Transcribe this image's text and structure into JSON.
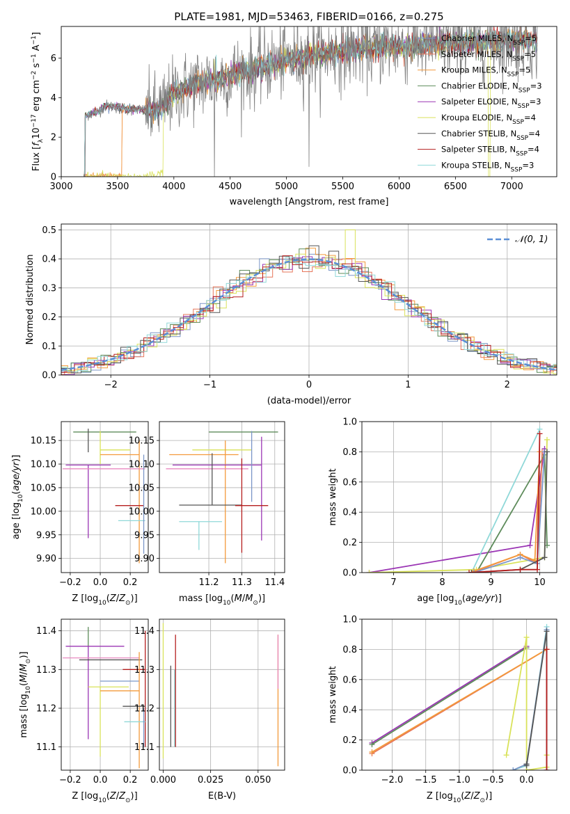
{
  "figure_title": "PLATE=1981, MJD=53463, FIBERID=0166, z=0.275",
  "colors": {
    "Chabrier MILES": "#7b96c8",
    "Salpeter MILES": "#e6755a",
    "Kroupa MILES": "#f39a3b",
    "Chabrier ELODIE": "#5d8b5a",
    "Salpeter ELODIE": "#9a34b4",
    "Kroupa ELODIE": "#d9e25a",
    "Chabrier STELIB": "#555555",
    "Salpeter STELIB": "#b51e1e",
    "Kroupa STELIB": "#8fd8d8",
    "pink": "#e88ac0",
    "normal_curve": "#5b8fd6"
  },
  "chart_data": [
    {
      "id": "spectrum",
      "type": "line",
      "xlabel": "wavelength [Angstrom, rest frame]",
      "ylabel": "Flux [f_λ 10^-17 erg cm^-2 s^-1 A^-1]",
      "xlim": [
        3000,
        7400
      ],
      "ylim": [
        0,
        7.6
      ],
      "xticks": [
        3000,
        3500,
        4000,
        4500,
        5000,
        5500,
        6000,
        6500,
        7000
      ],
      "yticks": [
        0,
        2,
        4,
        6
      ],
      "legend_position": "top-right",
      "series": [
        {
          "name": "Chabrier MILES",
          "nssp": 5
        },
        {
          "name": "Salpeter MILES",
          "nssp": 5
        },
        {
          "name": "Kroupa MILES",
          "nssp": 5
        },
        {
          "name": "Chabrier ELODIE",
          "nssp": 3
        },
        {
          "name": "Salpeter ELODIE",
          "nssp": 3
        },
        {
          "name": "Kroupa ELODIE",
          "nssp": 4
        },
        {
          "name": "Chabrier STELIB",
          "nssp": 4
        },
        {
          "name": "Salpeter STELIB",
          "nssp": 4
        },
        {
          "name": "Kroupa STELIB",
          "nssp": 3
        }
      ],
      "continuum": {
        "x": [
          3200,
          3300,
          3400,
          3500,
          3600,
          3700,
          3800,
          3900,
          4000,
          4200,
          4400,
          4600,
          4800,
          5000,
          5200,
          5400,
          5600,
          5800,
          6000,
          6200,
          6400,
          6600,
          6800,
          7000,
          7200
        ],
        "y": [
          3.1,
          3.2,
          3.6,
          3.5,
          3.4,
          3.4,
          3.3,
          3.5,
          4.2,
          4.7,
          5.0,
          5.3,
          5.6,
          5.9,
          6.1,
          6.3,
          6.45,
          6.55,
          6.6,
          6.7,
          6.75,
          6.8,
          6.85,
          6.9,
          6.9
        ]
      },
      "gray_noise_from": 3750
    },
    {
      "id": "residuals",
      "type": "step",
      "xlabel": "(data-model)/error",
      "ylabel": "Normed distribution",
      "xlim": [
        -2.5,
        2.5
      ],
      "ylim": [
        0,
        0.52
      ],
      "xticks": [
        -2,
        -1,
        0,
        1,
        2
      ],
      "yticks": [
        0.0,
        0.1,
        0.2,
        0.3,
        0.4,
        0.5
      ],
      "bin_width": 0.1,
      "normal_label": "𝒩(0, 1)",
      "legend_position": "top-right"
    },
    {
      "id": "age_vs_Z",
      "type": "errorbar",
      "xlabel": "Z [log10(Z/Z⊙)]",
      "ylabel": "age [log10(age/yr)]",
      "xlim": [
        -0.26,
        0.32
      ],
      "ylim": [
        9.87,
        10.19
      ],
      "xticks": [
        -0.2,
        0.0,
        0.2
      ],
      "yticks": [
        9.9,
        9.95,
        10.0,
        10.05,
        10.1,
        10.15
      ],
      "points": [
        {
          "c": "Chabrier ELODIE",
          "x": 0.06,
          "y": 10.168,
          "xerr": [
            0.24,
            0.18
          ],
          "yerr": [
            0.0,
            0.0
          ]
        },
        {
          "c": "Chabrier STELIB",
          "x": -0.08,
          "y": 10.125,
          "xerr": [
            0.0,
            0.0
          ],
          "yerr": [
            0.0,
            0.05
          ]
        },
        {
          "c": "Kroupa ELODIE",
          "x": 0.0,
          "y": 10.13,
          "xerr": [
            0.0,
            0.2
          ],
          "yerr": [
            0.03,
            0.04
          ]
        },
        {
          "c": "Kroupa MILES",
          "x": 0.26,
          "y": 10.12,
          "xerr": [
            0.26,
            0.0
          ],
          "yerr": [
            0.23,
            0.03
          ]
        },
        {
          "c": "Salpeter ELODIE",
          "x": -0.08,
          "y": 10.098,
          "xerr": [
            0.15,
            0.15
          ],
          "yerr": [
            0.155,
            0.0
          ]
        },
        {
          "c": "pink",
          "x": 0.1,
          "y": 10.09,
          "xerr": [
            0.35,
            0.2
          ],
          "yerr": [
            0.0,
            0.0
          ]
        },
        {
          "c": "Salpeter STELIB",
          "x": 0.2,
          "y": 10.012,
          "xerr": [
            0.1,
            0.09
          ],
          "yerr": [
            0.0,
            0.0
          ]
        },
        {
          "c": "Kroupa STELIB",
          "x": 0.2,
          "y": 9.98,
          "xerr": [
            0.08,
            0.1
          ],
          "yerr": [
            0.0,
            0.0
          ]
        },
        {
          "c": "Chabrier MILES",
          "x": 0.29,
          "y": 10.0,
          "xerr": [
            0.0,
            0.0
          ],
          "yerr": [
            0.09,
            0.12
          ]
        }
      ]
    },
    {
      "id": "age_vs_mass",
      "type": "errorbar",
      "xlabel": "mass [log10(M/M⊙)]",
      "ylabel": "",
      "xlim": [
        11.05,
        11.43
      ],
      "ylim": [
        9.87,
        10.19
      ],
      "xticks": [
        11.2,
        11.3,
        11.4
      ],
      "yticks": [
        9.9,
        9.95,
        10.0,
        10.05,
        10.1,
        10.15
      ],
      "points": [
        {
          "c": "Chabrier ELODIE",
          "x": 11.33,
          "y": 10.168,
          "xerr": [
            0.13,
            0.08
          ],
          "yerr": [
            0.0,
            0.0
          ]
        },
        {
          "c": "Kroupa ELODIE",
          "x": 11.27,
          "y": 10.13,
          "xerr": [
            0.12,
            0.06
          ],
          "yerr": [
            0.0,
            0.0
          ]
        },
        {
          "c": "Kroupa MILES",
          "x": 11.25,
          "y": 10.12,
          "xerr": [
            0.17,
            0.04
          ],
          "yerr": [
            0.23,
            0.03
          ]
        },
        {
          "c": "Salpeter ELODIE",
          "x": 11.36,
          "y": 10.098,
          "xerr": [
            0.27,
            0.0
          ],
          "yerr": [
            0.16,
            0.06
          ]
        },
        {
          "c": "pink",
          "x": 11.2,
          "y": 10.09,
          "xerr": [
            0.13,
            0.12
          ],
          "yerr": [
            0.0,
            0.0
          ]
        },
        {
          "c": "Chabrier STELIB",
          "x": 11.21,
          "y": 10.013,
          "xerr": [
            0.1,
            0.09
          ],
          "yerr": [
            0.0,
            0.11
          ]
        },
        {
          "c": "Salpeter STELIB",
          "x": 11.3,
          "y": 10.012,
          "xerr": [
            0.02,
            0.08
          ],
          "yerr": [
            0.1,
            0.1
          ]
        },
        {
          "c": "Kroupa STELIB",
          "x": 11.17,
          "y": 9.978,
          "xerr": [
            0.06,
            0.07
          ],
          "yerr": [
            0.06,
            0.0
          ]
        },
        {
          "c": "Chabrier MILES",
          "x": 11.33,
          "y": 10.06,
          "xerr": [
            0.0,
            0.0
          ],
          "yerr": [
            0.04,
            0.11
          ]
        }
      ]
    },
    {
      "id": "weight_vs_age",
      "type": "line",
      "xlabel": "age [log10(age/yr)]",
      "ylabel": "mass weight",
      "xlim": [
        6.35,
        10.35
      ],
      "ylim": [
        0,
        1.0
      ],
      "xticks": [
        7,
        8,
        9,
        10
      ],
      "yticks": [
        0.0,
        0.2,
        0.4,
        0.6,
        0.8,
        1.0
      ],
      "series": [
        {
          "c": "Salpeter ELODIE",
          "x": [
            6.5,
            9.8,
            10.1
          ],
          "y": [
            0.0,
            0.18,
            0.82
          ]
        },
        {
          "c": "Kroupa STELIB",
          "x": [
            8.6,
            10.0
          ],
          "y": [
            0.0,
            0.95
          ]
        },
        {
          "c": "Chabrier ELODIE",
          "x": [
            8.7,
            10.1,
            10.15
          ],
          "y": [
            0.0,
            0.78,
            0.18
          ]
        },
        {
          "c": "Kroupa ELODIE",
          "x": [
            6.5,
            8.7,
            10.1,
            10.15
          ],
          "y": [
            0.0,
            0.02,
            0.1,
            0.88
          ]
        },
        {
          "c": "Salpeter MILES",
          "x": [
            8.6,
            9.6,
            9.95,
            10.05
          ],
          "y": [
            0.0,
            0.12,
            0.06,
            0.8
          ]
        },
        {
          "c": "Kroupa MILES",
          "x": [
            8.65,
            9.6,
            9.9,
            10.0
          ],
          "y": [
            0.01,
            0.12,
            0.08,
            0.8
          ]
        },
        {
          "c": "Chabrier MILES",
          "x": [
            8.65,
            9.6,
            9.95,
            10.1
          ],
          "y": [
            0.0,
            0.1,
            0.06,
            0.8
          ]
        },
        {
          "c": "Chabrier STELIB",
          "x": [
            8.6,
            9.6,
            10.1,
            10.15
          ],
          "y": [
            0.0,
            0.02,
            0.1,
            0.8
          ]
        },
        {
          "c": "Salpeter STELIB",
          "x": [
            8.55,
            9.6,
            9.95,
            10.0
          ],
          "y": [
            0.0,
            0.02,
            0.02,
            0.92
          ]
        }
      ]
    },
    {
      "id": "mass_vs_Z",
      "type": "errorbar",
      "xlabel": "Z [log10(Z/Z⊙)]",
      "ylabel": "mass [log10(M/M⊙)]",
      "xlim": [
        -0.26,
        0.32
      ],
      "ylim": [
        11.04,
        11.43
      ],
      "xticks": [
        -0.2,
        0.0,
        0.2
      ],
      "yticks": [
        11.1,
        11.2,
        11.3,
        11.4
      ],
      "points": [
        {
          "c": "Chabrier ELODIE",
          "x": -0.08,
          "y": 11.36,
          "xerr": [
            0.0,
            0.0
          ],
          "yerr": [
            0.0,
            0.05
          ]
        },
        {
          "c": "Salpeter ELODIE",
          "x": -0.08,
          "y": 11.36,
          "xerr": [
            0.15,
            0.24
          ],
          "yerr": [
            0.24,
            0.0
          ]
        },
        {
          "c": "pink",
          "x": 0.0,
          "y": 11.33,
          "xerr": [
            0.25,
            0.26
          ],
          "yerr": [
            0.0,
            0.0
          ]
        },
        {
          "c": "Chabrier STELIB",
          "x": 0.1,
          "y": 11.325,
          "xerr": [
            0.24,
            0.18
          ],
          "yerr": [
            0.0,
            0.0
          ]
        },
        {
          "c": "Salpeter STELIB",
          "x": 0.3,
          "y": 11.3,
          "xerr": [
            0.15,
            0.0
          ],
          "yerr": [
            0.2,
            0.1
          ]
        },
        {
          "c": "Chabrier MILES",
          "x": 0.26,
          "y": 11.27,
          "xerr": [
            0.26,
            0.0
          ],
          "yerr": [
            0.0,
            0.0
          ]
        },
        {
          "c": "Kroupa ELODIE",
          "x": 0.0,
          "y": 11.255,
          "xerr": [
            0.08,
            0.19
          ],
          "yerr": [
            0.18,
            0.0
          ]
        },
        {
          "c": "Kroupa MILES",
          "x": 0.26,
          "y": 11.245,
          "xerr": [
            0.26,
            0.0
          ],
          "yerr": [
            0.2,
            0.1
          ]
        },
        {
          "c": "Chabrier STELIB",
          "x": 0.25,
          "y": 11.205,
          "xerr": [
            0.1,
            0.05
          ],
          "yerr": [
            0.0,
            0.0
          ]
        },
        {
          "c": "Kroupa STELIB",
          "x": 0.25,
          "y": 11.165,
          "xerr": [
            0.09,
            0.05
          ],
          "yerr": [
            0.0,
            0.0
          ]
        },
        {
          "c": "Chabrier MILES",
          "x": 0.29,
          "y": 11.2,
          "xerr": [
            0.0,
            0.0
          ],
          "yerr": [
            0.1,
            0.0
          ]
        }
      ]
    },
    {
      "id": "mass_vs_ebv",
      "type": "errorbar",
      "xlabel": "E(B-V)",
      "ylabel": "",
      "xlim": [
        -0.002,
        0.064
      ],
      "ylim": [
        11.04,
        11.43
      ],
      "xticks": [
        0.0,
        0.025,
        0.05
      ],
      "xticklabels": [
        "0.000",
        "0.025",
        "0.050"
      ],
      "yticks": [
        11.1,
        11.2,
        11.3,
        11.4
      ],
      "points": [
        {
          "c": "Kroupa ELODIE",
          "x": 0.0,
          "y": 11.3,
          "xerr": [
            0.0,
            0.0
          ],
          "yerr": [
            0.23,
            0.12
          ]
        },
        {
          "c": "Chabrier STELIB",
          "x": 0.004,
          "y": 11.2,
          "xerr": [
            0.0,
            0.0
          ],
          "yerr": [
            0.1,
            0.11
          ]
        },
        {
          "c": "Kroupa STELIB",
          "x": 0.006,
          "y": 11.2,
          "xerr": [
            0.0,
            0.0
          ],
          "yerr": [
            0.1,
            0.1
          ]
        },
        {
          "c": "Salpeter STELIB",
          "x": 0.0065,
          "y": 11.3,
          "xerr": [
            0.0,
            0.0
          ],
          "yerr": [
            0.2,
            0.09
          ]
        },
        {
          "c": "Kroupa MILES",
          "x": 0.0605,
          "y": 11.25,
          "xerr": [
            0.0,
            0.0
          ],
          "yerr": [
            0.2,
            0.14
          ]
        },
        {
          "c": "pink",
          "x": 0.0605,
          "y": 11.3,
          "xerr": [
            0.0,
            0.0
          ],
          "yerr": [
            0.05,
            0.09
          ]
        }
      ]
    },
    {
      "id": "weight_vs_Z",
      "type": "line",
      "xlabel": "Z [log10(Z/Z⊙)]",
      "ylabel": "mass weight",
      "xlim": [
        -2.45,
        0.45
      ],
      "ylim": [
        0,
        1.0
      ],
      "xticks": [
        -2.0,
        -1.5,
        -1.0,
        -0.5,
        0.0
      ],
      "xticklabels": [
        "−2.0",
        "−1.5",
        "−1.0",
        "−0.5",
        "0.0"
      ],
      "yticks": [
        0.0,
        0.2,
        0.4,
        0.6,
        0.8,
        1.0
      ],
      "series": [
        {
          "c": "Salpeter ELODIE",
          "x": [
            -2.3,
            0.0
          ],
          "y": [
            0.18,
            0.82
          ]
        },
        {
          "c": "Chabrier ELODIE",
          "x": [
            -2.3,
            0.0
          ],
          "y": [
            0.17,
            0.81
          ]
        },
        {
          "c": "Salpeter MILES",
          "x": [
            -2.3,
            0.3
          ],
          "y": [
            0.11,
            0.8
          ]
        },
        {
          "c": "Kroupa MILES",
          "x": [
            -2.3,
            0.3
          ],
          "y": [
            0.12,
            0.8
          ]
        },
        {
          "c": "Kroupa ELODIE",
          "x": [
            -0.3,
            0.0,
            0.0,
            0.3,
            0.3
          ],
          "y": [
            0.1,
            0.88,
            0.0,
            0.02,
            0.1
          ]
        },
        {
          "c": "Kroupa STELIB",
          "x": [
            -0.2,
            0.0,
            0.3
          ],
          "y": [
            0.0,
            0.03,
            0.95
          ]
        },
        {
          "c": "Chabrier MILES",
          "x": [
            -0.2,
            0.0,
            0.3
          ],
          "y": [
            0.0,
            0.04,
            0.93
          ]
        },
        {
          "c": "Chabrier STELIB",
          "x": [
            0.0,
            0.0,
            0.3,
            0.3
          ],
          "y": [
            0.04,
            0.03,
            0.92,
            0.0
          ]
        },
        {
          "c": "Salpeter STELIB",
          "x": [
            0.3,
            0.3
          ],
          "y": [
            0.0,
            0.8
          ]
        }
      ]
    }
  ]
}
